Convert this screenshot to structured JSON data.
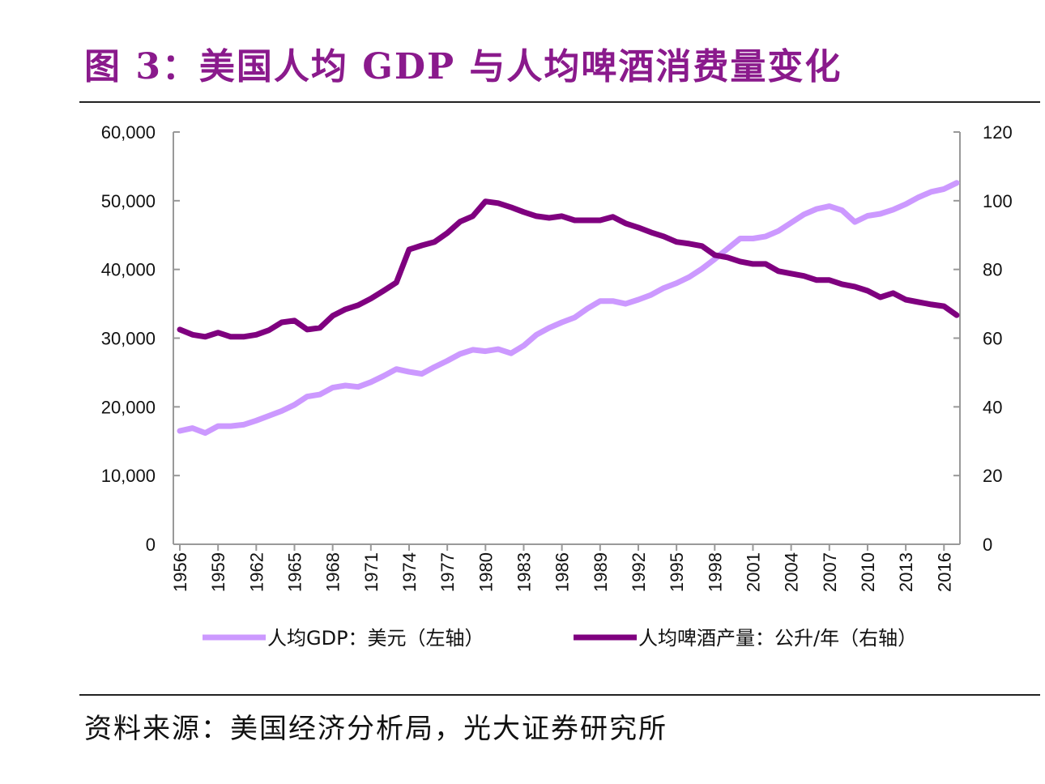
{
  "title": "图 3：美国人均 GDP 与人均啤酒消费量变化",
  "source": "资料来源：美国经济分析局，光大证券研究所",
  "chart_data": {
    "type": "line",
    "title": "图 3：美国人均 GDP 与人均啤酒消费量变化",
    "x": [
      1956,
      1957,
      1958,
      1959,
      1960,
      1961,
      1962,
      1963,
      1964,
      1965,
      1966,
      1967,
      1968,
      1969,
      1970,
      1971,
      1972,
      1973,
      1974,
      1975,
      1976,
      1977,
      1978,
      1979,
      1980,
      1981,
      1982,
      1983,
      1984,
      1985,
      1986,
      1987,
      1988,
      1989,
      1990,
      1991,
      1992,
      1993,
      1994,
      1995,
      1996,
      1997,
      1998,
      1999,
      2000,
      2001,
      2002,
      2003,
      2004,
      2005,
      2006,
      2007,
      2008,
      2009,
      2010,
      2011,
      2012,
      2013,
      2014,
      2015,
      2016,
      2017
    ],
    "x_tick_labels": [
      "1956",
      "1959",
      "1962",
      "1965",
      "1968",
      "1971",
      "1974",
      "1977",
      "1980",
      "1983",
      "1986",
      "1989",
      "1992",
      "1995",
      "1998",
      "2001",
      "2004",
      "2007",
      "2010",
      "2013",
      "2016"
    ],
    "y_left": {
      "range": [
        0,
        60000
      ],
      "tick_labels": [
        "0",
        "10,000",
        "20,000",
        "30,000",
        "40,000",
        "50,000",
        "60,000"
      ]
    },
    "y_right": {
      "range": [
        0,
        120
      ],
      "tick_labels": [
        "0",
        "20",
        "40",
        "60",
        "80",
        "100",
        "120"
      ]
    },
    "grid": false,
    "legend_position": "bottom",
    "series": [
      {
        "name": "人均GDP：美元（左轴）",
        "axis": "left",
        "color": "#cc99ff",
        "values": [
          16500,
          16900,
          16200,
          17200,
          17200,
          17400,
          18000,
          18700,
          19400,
          20300,
          21500,
          21800,
          22800,
          23100,
          22900,
          23600,
          24500,
          25500,
          25100,
          24800,
          25800,
          26700,
          27700,
          28300,
          28100,
          28400,
          27800,
          28900,
          30500,
          31500,
          32300,
          33000,
          34300,
          35400,
          35400,
          35000,
          35600,
          36300,
          37300,
          38000,
          38900,
          40100,
          41500,
          43000,
          44500,
          44500,
          44800,
          45600,
          46800,
          48000,
          48800,
          49200,
          48600,
          46900,
          47800,
          48100,
          48700,
          49500,
          50500,
          51300,
          51700,
          52600
        ]
      },
      {
        "name": "人均啤酒产量：公升/年（右轴）",
        "axis": "right",
        "color": "#7f007f",
        "values": [
          62.5,
          61,
          60.4,
          61.6,
          60.4,
          60.4,
          61,
          62.3,
          64.6,
          65.1,
          62.5,
          63,
          66.5,
          68.4,
          69.6,
          71.5,
          73.8,
          76.2,
          85.8,
          87,
          88,
          90.6,
          93.9,
          95.5,
          99.8,
          99.3,
          98.1,
          96.7,
          95.5,
          95,
          95.5,
          94.3,
          94.3,
          94.3,
          95.3,
          93.4,
          92.2,
          90.8,
          89.6,
          88,
          87.5,
          86.8,
          84.2,
          83.5,
          82.3,
          81.6,
          81.6,
          79.5,
          78.8,
          78.1,
          76.9,
          76.9,
          75.7,
          75,
          73.8,
          71.9,
          73.1,
          71.2,
          70.5,
          69.8,
          69.3,
          66.7
        ]
      }
    ]
  }
}
